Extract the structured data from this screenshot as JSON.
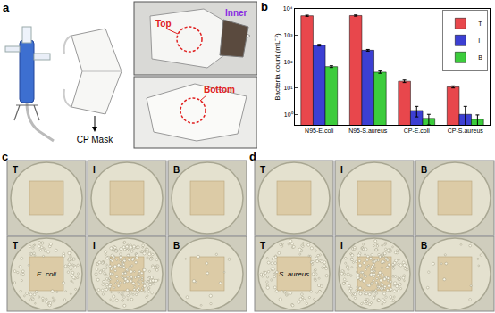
{
  "panels": {
    "a": {
      "label": "a",
      "mask": "CP Mask",
      "top": "Top",
      "inner": "Inner",
      "bottom": "Bottom"
    },
    "b": {
      "label": "b"
    },
    "c": {
      "label": "c",
      "dishes": [
        "T",
        "I",
        "B"
      ],
      "organism": "E. coli"
    },
    "d": {
      "label": "d",
      "dishes": [
        "T",
        "I",
        "B"
      ],
      "organism": "S. aureus"
    }
  },
  "chart_data": {
    "type": "bar",
    "y_label": "Bacteria count (mL⁻¹)",
    "categories": [
      "N95-E.coli",
      "N95-S.aureus",
      "CP-E.coli",
      "CP-S.aureus"
    ],
    "series": [
      {
        "name": "T",
        "color": "#e8474c",
        "values": [
          5500,
          5600,
          18,
          11
        ],
        "errors": [
          300,
          300,
          2,
          1
        ]
      },
      {
        "name": "I",
        "color": "#3c3fd3",
        "values": [
          420,
          270,
          1.4,
          1.0
        ],
        "errors": [
          30,
          20,
          0.6,
          1.0
        ]
      },
      {
        "name": "B",
        "color": "#3ccc3c",
        "values": [
          65,
          40,
          0.7,
          0.65
        ],
        "errors": [
          5,
          4,
          0.3,
          0.3
        ]
      }
    ],
    "log": "y",
    "ylim": [
      0.4,
      10000
    ],
    "yticks": [
      {
        "value": 1,
        "label": "10⁰"
      },
      {
        "value": 10,
        "label": "10¹"
      },
      {
        "value": 100,
        "label": "10²"
      },
      {
        "value": 1000,
        "label": "10³"
      },
      {
        "value": 10000,
        "label": "10⁴"
      }
    ],
    "grid": false,
    "legend": "top right"
  }
}
